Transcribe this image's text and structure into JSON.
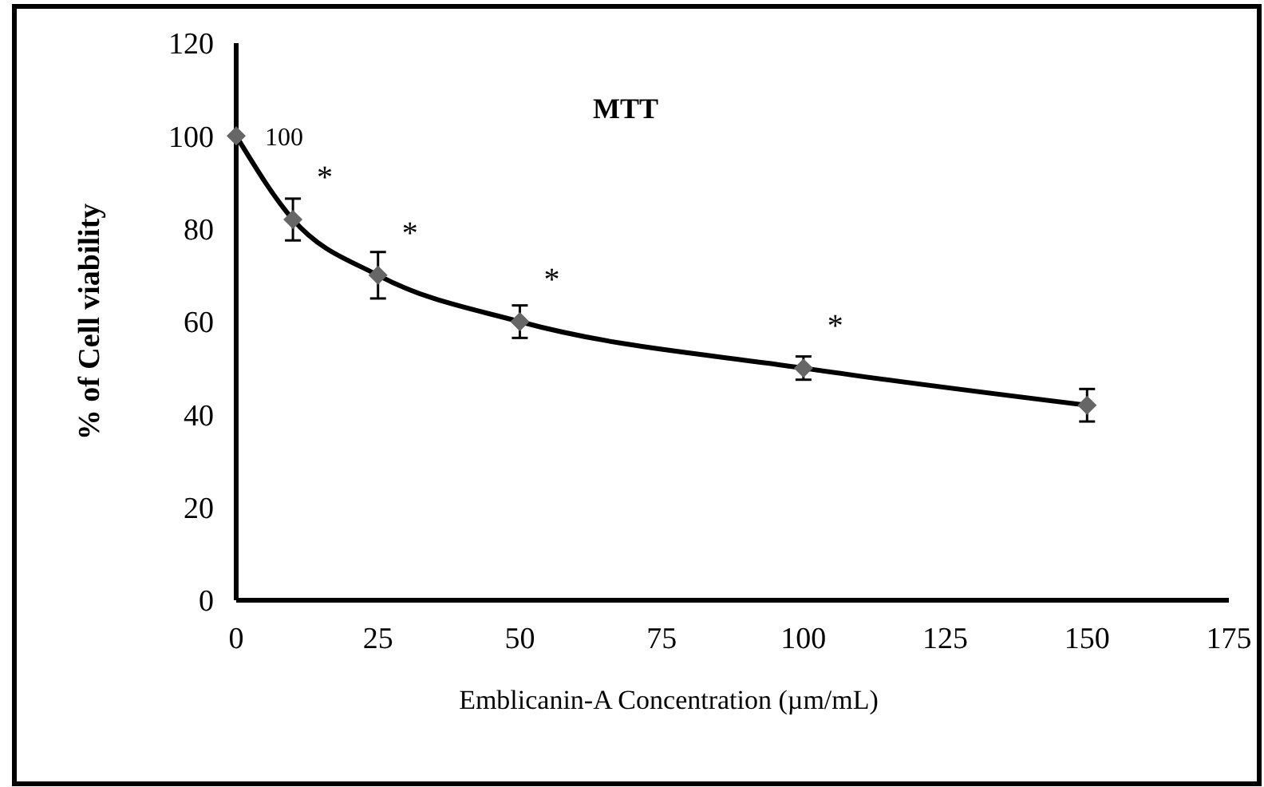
{
  "chart_data": {
    "type": "line",
    "title": "MTT",
    "xlabel": "Emblicanin-A Concentration (µm/mL)",
    "ylabel": "% of Cell viability",
    "x": [
      0,
      10,
      25,
      50,
      100,
      150
    ],
    "series": [
      {
        "color": "#000000",
        "values": [
          100,
          82,
          70,
          60,
          50,
          42
        ],
        "errors": [
          null,
          4.5,
          5,
          3.5,
          2.5,
          3.5
        ],
        "value_labels": [
          "100",
          null,
          null,
          null,
          null,
          null
        ]
      }
    ],
    "xlim": [
      0,
      175
    ],
    "xticks": [
      0,
      25,
      50,
      75,
      100,
      125,
      150,
      175
    ],
    "ylim": [
      0,
      120
    ],
    "yticks": [
      0,
      20,
      40,
      60,
      80,
      100,
      120
    ],
    "marker": "diamond",
    "line_style": "solid",
    "grid": false,
    "annotations": [
      {
        "text": "*",
        "x": 10,
        "y": 82
      },
      {
        "text": "*",
        "x": 25,
        "y": 70
      },
      {
        "text": "*",
        "x": 50,
        "y": 60
      },
      {
        "text": "*",
        "x": 100,
        "y": 50
      }
    ]
  }
}
